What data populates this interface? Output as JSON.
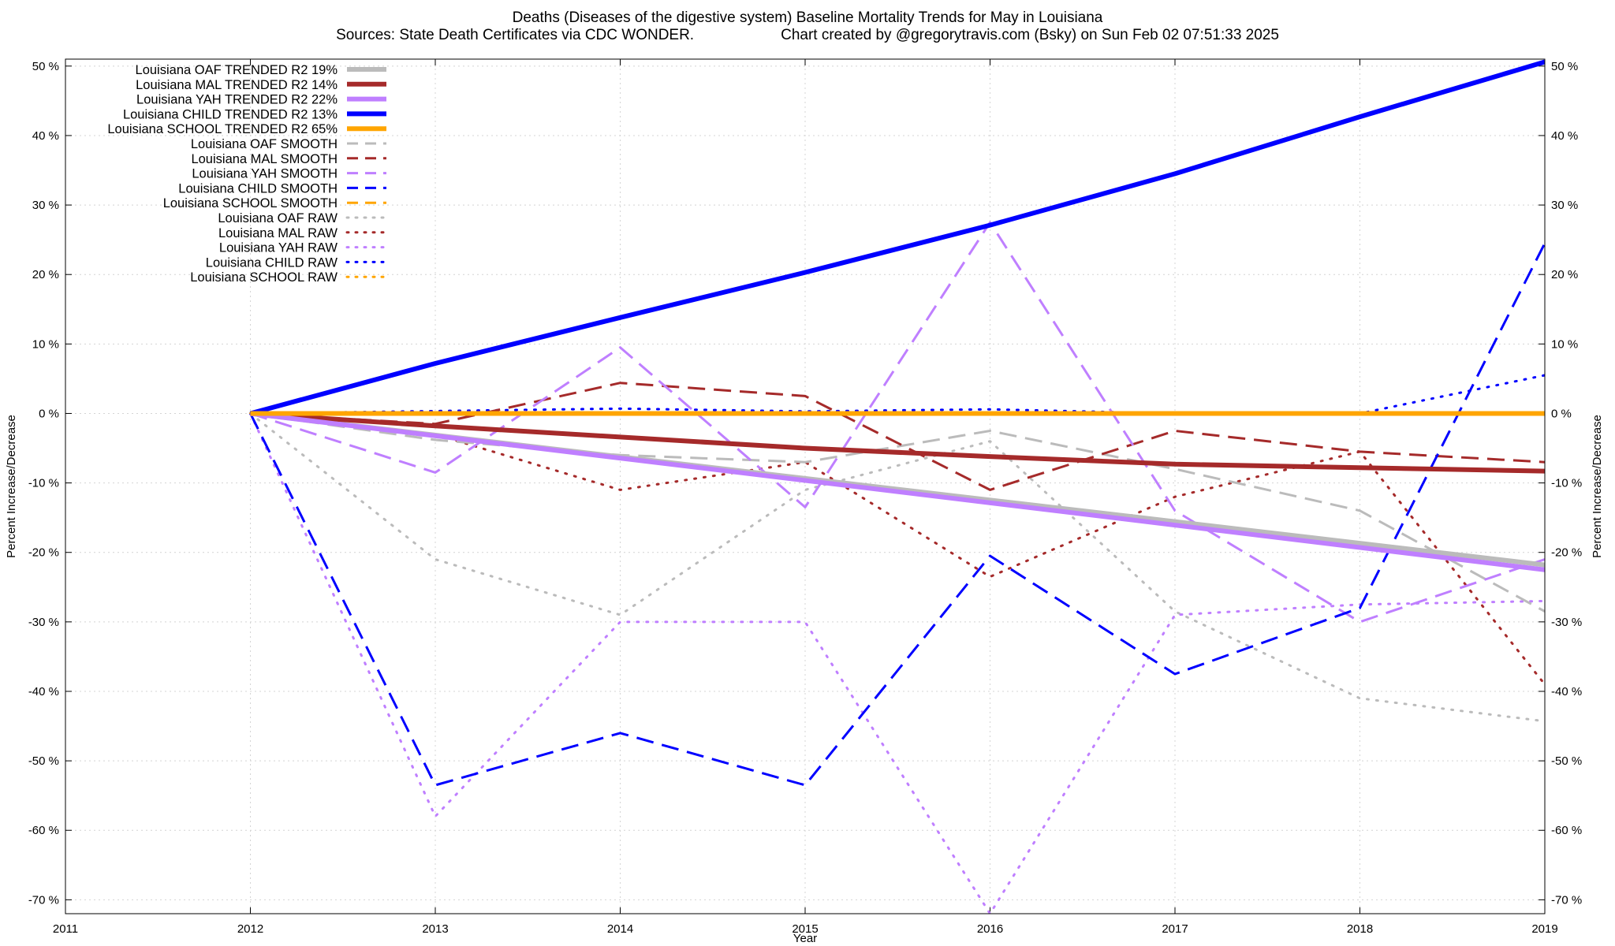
{
  "chart_data": {
    "type": "line",
    "title": "Deaths (Diseases of the digestive system)  Baseline Mortality Trends for May in Louisiana",
    "subtitle_left": "Sources: State Death Certificates via CDC WONDER.",
    "subtitle_right": "Chart created by @gregorytravis.com (Bsky) on Sun Feb 02 07:51:33 2025",
    "xlabel": "Year",
    "ylabel": "Percent Increase/Decrease",
    "xlim": [
      2011,
      2019
    ],
    "ylim": [
      -72,
      51
    ],
    "grid": true,
    "legend_position": "top-left",
    "x_ticks": [
      2011,
      2012,
      2013,
      2014,
      2015,
      2016,
      2017,
      2018,
      2019
    ],
    "x_tick_labels": [
      "2011",
      "2012",
      "2013",
      "2014",
      "2015",
      "2016",
      "2017",
      "2018",
      "2019"
    ],
    "y_ticks": [
      50,
      40,
      30,
      20,
      10,
      0,
      -10,
      -20,
      -30,
      -40,
      -50,
      -60,
      -70
    ],
    "y_tick_labels": [
      "50 %",
      "40 %",
      "30 %",
      "20 %",
      "10 %",
      "0 %",
      "-10 %",
      "-20 %",
      "-30 %",
      "-40 %",
      "-50 %",
      "-60 %",
      "-70 %"
    ],
    "series": [
      {
        "name": "Louisiana OAF TRENDED R2  19%",
        "color": "#bbbbbb",
        "style": "solid",
        "width": 6,
        "x": [
          2012,
          2019
        ],
        "y": [
          0,
          -21.8
        ]
      },
      {
        "name": "Louisiana MAL TRENDED R2  14%",
        "color": "#a52a2a",
        "style": "solid",
        "width": 6,
        "x": [
          2012,
          2013,
          2014,
          2015,
          2016,
          2017,
          2018,
          2019
        ],
        "y": [
          0,
          -1.8,
          -3.4,
          -5.0,
          -6.2,
          -7.3,
          -7.8,
          -8.3
        ]
      },
      {
        "name": "Louisiana YAH TRENDED R2  22%",
        "color": "#bf7fff",
        "style": "solid",
        "width": 6,
        "x": [
          2012,
          2019
        ],
        "y": [
          0,
          -22.5
        ]
      },
      {
        "name": "Louisiana CHILD TRENDED R2  13%",
        "color": "#0000ff",
        "style": "solid",
        "width": 6,
        "x": [
          2012,
          2013,
          2014,
          2015,
          2016,
          2017,
          2018,
          2019
        ],
        "y": [
          0,
          7.2,
          13.8,
          20.3,
          27.1,
          34.5,
          42.7,
          50.6
        ]
      },
      {
        "name": "Louisiana SCHOOL TRENDED R2  65%",
        "color": "#ffa500",
        "style": "solid",
        "width": 6,
        "x": [
          2012,
          2019
        ],
        "y": [
          0,
          0
        ]
      },
      {
        "name": "Louisiana OAF SMOOTH",
        "color": "#bbbbbb",
        "style": "dashed",
        "width": 3,
        "x": [
          2012,
          2013,
          2014,
          2015,
          2016,
          2017,
          2018,
          2019
        ],
        "y": [
          0,
          -3.8,
          -6.0,
          -7.0,
          -2.5,
          -8.0,
          -14.0,
          -28.5
        ]
      },
      {
        "name": "Louisiana MAL SMOOTH",
        "color": "#a52a2a",
        "style": "dashed",
        "width": 3,
        "x": [
          2012,
          2013,
          2014,
          2015,
          2016,
          2017,
          2018,
          2019
        ],
        "y": [
          0,
          -1.5,
          4.4,
          2.5,
          -11.0,
          -2.5,
          -5.5,
          -7.0
        ]
      },
      {
        "name": "Louisiana YAH SMOOTH",
        "color": "#bf7fff",
        "style": "dashed",
        "width": 3,
        "x": [
          2012,
          2013,
          2014,
          2015,
          2016,
          2017,
          2018,
          2019
        ],
        "y": [
          0,
          -8.5,
          9.5,
          -13.5,
          27.5,
          -14.0,
          -30.0,
          -21.0
        ]
      },
      {
        "name": "Louisiana CHILD SMOOTH",
        "color": "#0000ff",
        "style": "dashed",
        "width": 3,
        "x": [
          2012,
          2013,
          2014,
          2015,
          2016,
          2017,
          2018,
          2019
        ],
        "y": [
          0,
          -53.5,
          -46.0,
          -53.5,
          -20.5,
          -37.5,
          -28.0,
          24.5
        ]
      },
      {
        "name": "Louisiana SCHOOL SMOOTH",
        "color": "#ffa500",
        "style": "dashed",
        "width": 3,
        "x": [
          2012,
          2019
        ],
        "y": [
          0,
          0
        ]
      },
      {
        "name": "Louisiana OAF RAW",
        "color": "#bbbbbb",
        "style": "dotted",
        "width": 3,
        "x": [
          2012,
          2013,
          2014,
          2015,
          2016,
          2017,
          2018,
          2019
        ],
        "y": [
          0,
          -21.0,
          -29.0,
          -11.0,
          -4.0,
          -28.5,
          -41.0,
          -44.3
        ]
      },
      {
        "name": "Louisiana MAL RAW",
        "color": "#a52a2a",
        "style": "dotted",
        "width": 3,
        "x": [
          2012,
          2013,
          2014,
          2015,
          2016,
          2017,
          2018,
          2019
        ],
        "y": [
          0,
          -3.0,
          -11.0,
          -7.0,
          -23.5,
          -12.0,
          -5.5,
          -39.0
        ]
      },
      {
        "name": "Louisiana YAH RAW",
        "color": "#bf7fff",
        "style": "dotted",
        "width": 3,
        "x": [
          2012,
          2013,
          2014,
          2015,
          2016,
          2017,
          2018,
          2019
        ],
        "y": [
          0,
          -58.0,
          -30.0,
          -30.0,
          -72.0,
          -29.0,
          -27.5,
          -27.0
        ]
      },
      {
        "name": "Louisiana CHILD RAW",
        "color": "#0000ff",
        "style": "dotted",
        "width": 3,
        "x": [
          2012,
          2014,
          2015,
          2016,
          2017,
          2018,
          2019
        ],
        "y": [
          0,
          0.7,
          0.3,
          0.6,
          0,
          0,
          5.5
        ]
      },
      {
        "name": "Louisiana SCHOOL RAW",
        "color": "#ffa500",
        "style": "dotted",
        "width": 3,
        "x": [
          2012,
          2019
        ],
        "y": [
          0,
          0
        ]
      }
    ]
  }
}
